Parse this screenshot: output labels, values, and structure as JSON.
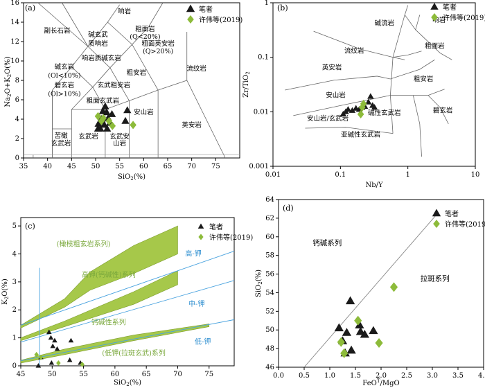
{
  "colors": {
    "black": "#1a1a1a",
    "green": "#8dbb3a",
    "blue_line": "#4aa3df",
    "green_band": "#a6c84a",
    "green_text": "#7aa83c",
    "blue_text": "#2f8fd0"
  },
  "chart_data": [
    {
      "id": "a",
      "type": "scatter",
      "panel_label": "(a)",
      "xlabel": "SiO2(%)",
      "ylabel": "Na2O+K2O(%)",
      "xlim": [
        35,
        80
      ],
      "ylim": [
        0,
        16
      ],
      "xticks": [
        35,
        40,
        45,
        50,
        55,
        60,
        65,
        70,
        75
      ],
      "yticks": [
        0,
        2,
        4,
        6,
        8,
        10,
        12,
        14,
        16
      ],
      "legend": [
        "笔者",
        "许伟等(2019)"
      ],
      "field_labels": [
        "响岩",
        "副长石岩",
        "碱玄武",
        "质响岩",
        "粗面岩",
        "(Q<20%)",
        "粗面英安岩",
        "(Q>20%)",
        "响岩质碱玄岩",
        "碱玄岩",
        "(Ol<10%)",
        "碧玄岩",
        "(Ol>10%)",
        "玄武粗安岩",
        "粗安岩",
        "粗面玄武岩",
        "流纹岩",
        "安山岩",
        "英安岩",
        "苦橄",
        "玄武岩",
        "玄武岩",
        "玄武安",
        "山岩"
      ],
      "series": [
        {
          "name": "笔者",
          "marker": "triangle",
          "points": [
            [
              50.5,
              3.0
            ],
            [
              50.6,
              3.5
            ],
            [
              51.0,
              3.8
            ],
            [
              51.2,
              4.0
            ],
            [
              51.5,
              4.8
            ],
            [
              51.8,
              3.4
            ],
            [
              52.0,
              5.3
            ],
            [
              52.3,
              4.7
            ],
            [
              52.6,
              4.1
            ],
            [
              53.0,
              3.6
            ],
            [
              53.4,
              4.5
            ],
            [
              56.2,
              3.8
            ],
            [
              56.6,
              4.9
            ],
            [
              52.4,
              3.0
            ],
            [
              51.0,
              3.0
            ]
          ]
        },
        {
          "name": "许伟等(2019)",
          "marker": "diamond",
          "points": [
            [
              50.5,
              4.3
            ],
            [
              51.2,
              3.8
            ],
            [
              52.8,
              3.8
            ],
            [
              53.5,
              3.3
            ],
            [
              57.8,
              3.4
            ],
            [
              51.6,
              4.1
            ]
          ]
        }
      ]
    },
    {
      "id": "b",
      "type": "scatter",
      "panel_label": "(b)",
      "xlabel": "Nb/Y",
      "ylabel": "Zr/TiO2",
      "xscale": "log",
      "yscale": "log",
      "xlim": [
        0.01,
        10
      ],
      "ylim": [
        0.001,
        1
      ],
      "xticks": [
        "0.01",
        "0.1",
        "1",
        "10"
      ],
      "yticks": [
        "0.001",
        "0.01",
        "0.1",
        "1"
      ],
      "legend": [
        "笔者",
        "许伟等(2019)"
      ],
      "field_labels": [
        "碱流岩",
        "响岩",
        "流纹岩",
        "粗面岩",
        "英安岩",
        "粗安岩",
        "安山岩",
        "安山岩/玄武岩",
        "碱性玄武岩",
        "碧玄岩",
        "亚碱性玄武岩"
      ],
      "series": [
        {
          "name": "笔者",
          "marker": "triangle",
          "points": [
            [
              0.11,
              0.009
            ],
            [
              0.12,
              0.01
            ],
            [
              0.13,
              0.011
            ],
            [
              0.15,
              0.0105
            ],
            [
              0.17,
              0.0115
            ],
            [
              0.19,
              0.011
            ],
            [
              0.21,
              0.012
            ],
            [
              0.23,
              0.0125
            ],
            [
              0.26,
              0.015
            ],
            [
              0.28,
              0.019
            ],
            [
              0.3,
              0.013
            ],
            [
              0.32,
              0.012
            ]
          ]
        },
        {
          "name": "许伟等(2019)",
          "marker": "diamond",
          "points": [
            [
              0.2,
              0.009
            ],
            [
              0.21,
              0.012
            ],
            [
              0.22,
              0.014
            ]
          ]
        }
      ]
    },
    {
      "id": "c",
      "type": "scatter",
      "panel_label": "(c)",
      "xlabel": "SiO2(%)",
      "ylabel": "K2O(%)",
      "xlim": [
        45,
        79
      ],
      "ylim": [
        0,
        5.3
      ],
      "xticks": [
        45,
        50,
        55,
        60,
        65,
        70,
        75
      ],
      "yticks": [
        0,
        1,
        2,
        3,
        4,
        5
      ],
      "legend": [
        "笔者",
        "许伟等(2019)"
      ],
      "series_labels": [
        "(橄榄粗玄岩系列)",
        "高钾(钙碱性)系列",
        "钙碱性系列",
        "(低钾(拉斑玄武)系列",
        "高-钾",
        "中-钾",
        "低-钾"
      ],
      "series": [
        {
          "name": "笔者",
          "marker": "triangle",
          "points": [
            [
              47.8,
              0.0
            ],
            [
              48.2,
              0.3
            ],
            [
              49.5,
              1.2
            ],
            [
              49.8,
              1.0
            ],
            [
              50.1,
              0.7
            ],
            [
              50.4,
              0.9
            ],
            [
              50.8,
              0.6
            ],
            [
              49.9,
              0.1
            ],
            [
              53.0,
              0.9
            ],
            [
              52.8,
              0.2
            ],
            [
              54.5,
              0.1
            ]
          ]
        },
        {
          "name": "许伟等(2019)",
          "marker": "diamond",
          "points": [
            [
              47.5,
              0.4
            ],
            [
              48.2,
              0.3
            ],
            [
              51.0,
              0.1
            ],
            [
              54.8,
              0.05
            ]
          ]
        }
      ]
    },
    {
      "id": "d",
      "type": "scatter",
      "panel_label": "(d)",
      "xlabel": "FeOT/MgO",
      "ylabel": "SiO2(%)",
      "xlim": [
        0.0,
        4.0
      ],
      "ylim": [
        46,
        64
      ],
      "xticks": [
        "0.0",
        "0.5",
        "1.0",
        "1.5",
        "2.0",
        "2.5",
        "3.0",
        "3.5",
        "4.0"
      ],
      "yticks": [
        46,
        48,
        50,
        52,
        54,
        56,
        58,
        60,
        62,
        64
      ],
      "legend": [
        "笔者",
        "许伟等(2019)"
      ],
      "field_labels": [
        "钙碱系列",
        "拉斑系列"
      ],
      "series": [
        {
          "name": "笔者",
          "marker": "triangle",
          "points": [
            [
              1.18,
              50.2
            ],
            [
              1.25,
              48.8
            ],
            [
              1.3,
              47.5
            ],
            [
              1.33,
              49.7
            ],
            [
              1.4,
              53.1
            ],
            [
              1.42,
              47.8
            ],
            [
              1.58,
              50.5
            ],
            [
              1.6,
              49.8
            ],
            [
              1.68,
              49.5
            ],
            [
              1.85,
              49.9
            ]
          ]
        },
        {
          "name": "许伟等(2019)",
          "marker": "diamond",
          "points": [
            [
              1.22,
              48.7
            ],
            [
              1.28,
              47.5
            ],
            [
              1.55,
              51.0
            ],
            [
              1.96,
              48.6
            ],
            [
              2.25,
              54.6
            ]
          ]
        }
      ]
    }
  ]
}
